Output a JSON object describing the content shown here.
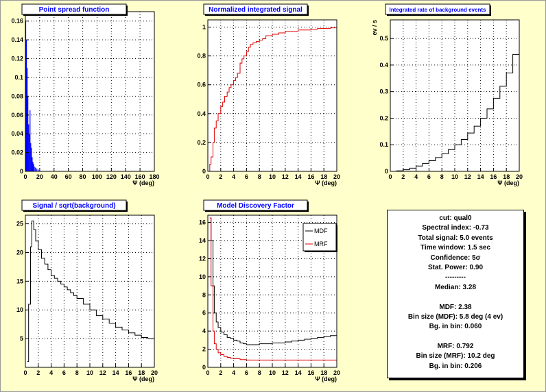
{
  "colors": {
    "background": "#ffffcc",
    "title_text": "#0000ff",
    "signal": "#dd0000",
    "psf": "#0000ff",
    "line": "#000000"
  },
  "stats_box": {
    "lines": [
      "cut: qual0",
      "Spectral index: -0.73",
      "Total signal: 5.0 events",
      "Time window: 1.5 sec",
      "Confidence: 5σ",
      "Stat. Power: 0.90",
      "---------",
      "Median: 3.28",
      "",
      "MDF: 2.38",
      "Bin size (MDF): 5.8 deg (4 ev)",
      "Bg. in bin: 0.060",
      "",
      "MRF: 0.792",
      "Bin size (MRF): 10.2 deg",
      "Bg. in bin: 0.206"
    ]
  },
  "chart_data": [
    {
      "type": "bar",
      "title": "Point spread function",
      "xlabel": "Ψ (deg)",
      "ylabel": "",
      "xlim": [
        0,
        180
      ],
      "ylim": [
        0,
        0.17
      ],
      "xticks": [
        0,
        20,
        40,
        60,
        80,
        100,
        120,
        140,
        160,
        180
      ],
      "yticks": [
        0,
        0.02,
        0.04,
        0.06,
        0.08,
        0.1,
        0.12,
        0.14,
        0.16
      ],
      "grid": true,
      "series": [
        {
          "color": "#0000ff",
          "x": [
            0.5,
            1.5,
            2.5,
            3.5,
            4.5,
            5.5,
            6.5,
            7.5,
            8.5,
            9.5,
            10.5,
            11.5,
            12.5,
            14,
            16,
            18,
            20
          ],
          "values": [
            0.16,
            0.14,
            0.11,
            0.08,
            0.05,
            0.04,
            0.065,
            0.03,
            0.025,
            0.015,
            0.01,
            0.008,
            0.005,
            0.004,
            0.003,
            0.002,
            0.001
          ]
        }
      ]
    },
    {
      "type": "line",
      "title": "Normalized integrated signal",
      "xlabel": "Ψ (deg)",
      "ylabel": "",
      "xlim": [
        0,
        20
      ],
      "ylim": [
        0,
        1.05
      ],
      "xticks": [
        0,
        2,
        4,
        6,
        8,
        10,
        12,
        14,
        16,
        18,
        20
      ],
      "yticks": [
        0,
        0.2,
        0.4,
        0.6,
        0.8,
        1
      ],
      "grid": true,
      "series": [
        {
          "color": "#dd0000",
          "x": [
            0,
            0.3,
            0.5,
            0.8,
            1,
            1.3,
            1.6,
            2,
            2.3,
            2.6,
            3,
            3.3,
            3.6,
            4,
            4.3,
            4.6,
            5,
            5.3,
            5.6,
            6,
            6.3,
            6.6,
            7,
            7.5,
            8,
            8.5,
            9,
            10,
            11,
            12,
            13,
            14,
            15,
            16,
            17,
            18,
            19,
            20
          ],
          "values": [
            0,
            0.05,
            0.1,
            0.2,
            0.3,
            0.35,
            0.4,
            0.45,
            0.48,
            0.52,
            0.55,
            0.58,
            0.6,
            0.63,
            0.65,
            0.68,
            0.75,
            0.78,
            0.8,
            0.83,
            0.86,
            0.88,
            0.89,
            0.9,
            0.91,
            0.92,
            0.94,
            0.95,
            0.96,
            0.97,
            0.97,
            0.98,
            0.98,
            0.985,
            0.99,
            0.99,
            0.995,
            1.0
          ]
        }
      ]
    },
    {
      "type": "line",
      "title": "Integrated rate of background events",
      "xlabel": "Ψ (deg)",
      "ylabel": "ev / s",
      "xlim": [
        0,
        20
      ],
      "ylim": [
        0,
        0.57
      ],
      "xticks": [
        0,
        2,
        4,
        6,
        8,
        10,
        12,
        14,
        16,
        18,
        20
      ],
      "yticks": [
        0,
        0.1,
        0.2,
        0.3,
        0.4,
        0.5
      ],
      "grid": true,
      "series": [
        {
          "color": "#000000",
          "x": [
            0,
            1,
            2,
            3,
            4,
            5,
            6,
            7,
            8,
            9,
            10,
            11,
            12,
            13,
            14,
            15,
            16,
            17,
            18,
            19,
            20
          ],
          "values": [
            0,
            0.002,
            0.006,
            0.012,
            0.02,
            0.03,
            0.04,
            0.052,
            0.066,
            0.082,
            0.1,
            0.12,
            0.144,
            0.17,
            0.2,
            0.235,
            0.275,
            0.32,
            0.37,
            0.44,
            0.525
          ]
        }
      ]
    },
    {
      "type": "line",
      "title": "Signal / sqrt(background)",
      "xlabel": "Ψ (deg)",
      "ylabel": "",
      "xlim": [
        0,
        20
      ],
      "ylim": [
        0,
        26.5
      ],
      "xticks": [
        0,
        2,
        4,
        6,
        8,
        10,
        12,
        14,
        16,
        18,
        20
      ],
      "yticks": [
        5,
        10,
        15,
        20,
        25
      ],
      "grid": true,
      "series": [
        {
          "color": "#000000",
          "x": [
            0.3,
            0.5,
            0.8,
            1,
            1.3,
            1.6,
            2,
            2.5,
            3,
            3.5,
            4,
            4.5,
            5,
            5.5,
            6,
            6.5,
            7,
            7.5,
            8,
            9,
            10,
            11,
            12,
            13,
            14,
            15,
            16,
            17,
            18,
            19,
            20
          ],
          "values": [
            1,
            11,
            21,
            25.5,
            24,
            22,
            20.5,
            19,
            18,
            17,
            16,
            15.5,
            15,
            14.5,
            14,
            13.5,
            13,
            12.5,
            12,
            11,
            10,
            9,
            8.4,
            7.7,
            7,
            6.5,
            6,
            5.6,
            5.2,
            5,
            4.8
          ]
        }
      ]
    },
    {
      "type": "line",
      "title": "Model Discovery Factor",
      "xlabel": "Ψ (deg)",
      "ylabel": "",
      "xlim": [
        0,
        20
      ],
      "ylim": [
        0,
        16.8
      ],
      "xticks": [
        0,
        2,
        4,
        6,
        8,
        10,
        12,
        14,
        16,
        18,
        20
      ],
      "yticks": [
        0,
        2,
        4,
        6,
        8,
        10,
        12,
        14,
        16
      ],
      "grid": true,
      "legend": {
        "position": "top-right",
        "entries": [
          "MDF",
          "MRF"
        ]
      },
      "series": [
        {
          "name": "MDF",
          "color": "#000000",
          "x": [
            0.3,
            0.5,
            0.8,
            1,
            1.3,
            1.6,
            2,
            2.5,
            3,
            3.5,
            4,
            4.5,
            5,
            5.5,
            6,
            7,
            8,
            9,
            10,
            11,
            12,
            13,
            14,
            15,
            16,
            17,
            18,
            19,
            20
          ],
          "values": [
            16.5,
            14,
            9,
            6,
            5,
            4.4,
            3.9,
            3.6,
            3.3,
            3.2,
            3,
            2.9,
            2.7,
            2.6,
            2.5,
            2.5,
            2.6,
            2.6,
            2.7,
            2.7,
            2.8,
            2.9,
            3,
            3.1,
            3.2,
            3.3,
            3.4,
            3.5,
            3.7
          ]
        },
        {
          "name": "MRF",
          "color": "#dd0000",
          "x": [
            0.3,
            0.5,
            0.8,
            1,
            1.3,
            1.6,
            2,
            2.5,
            3,
            3.5,
            4,
            5,
            6,
            7,
            8,
            10,
            12,
            14,
            16,
            18,
            20
          ],
          "values": [
            16.5,
            9,
            4,
            2.6,
            2,
            1.6,
            1.4,
            1.2,
            1.1,
            1,
            0.95,
            0.85,
            0.8,
            0.8,
            0.8,
            0.8,
            0.8,
            0.8,
            0.8,
            0.8,
            0.8
          ]
        }
      ]
    }
  ]
}
